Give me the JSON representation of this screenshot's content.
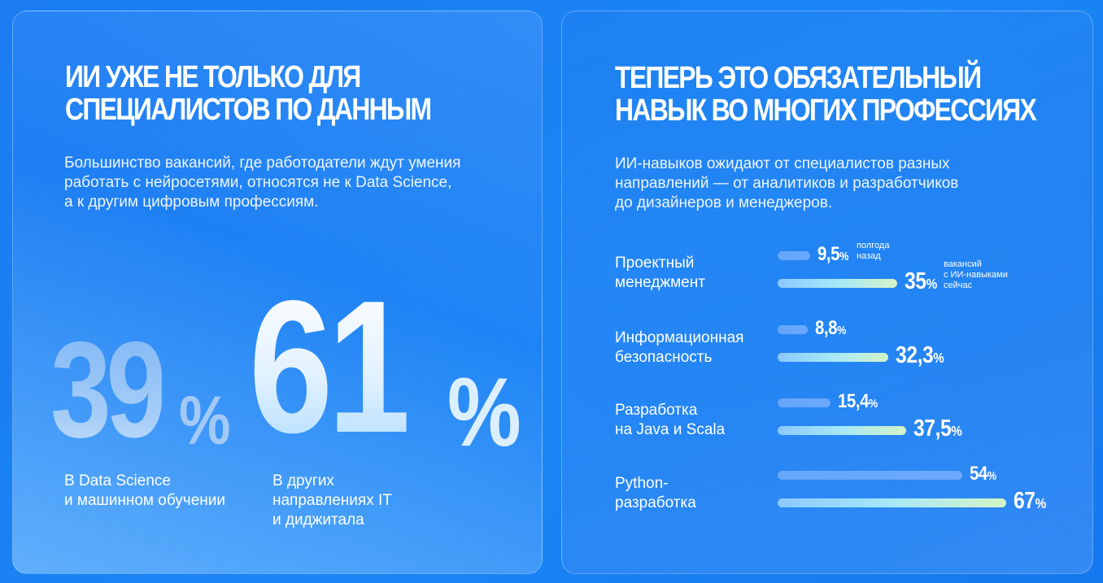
{
  "left": {
    "title_line1": "ИИ УЖЕ НЕ ТОЛЬКО ДЛЯ",
    "title_line2": "СПЕЦИАЛИСТОВ ПО ДАННЫМ",
    "lead": [
      "Большинство вакансий, где работодатели ждут умения",
      "работать с нейросетями, относятся не к Data Science,",
      "а к другим цифровым профессиям."
    ],
    "stat1": {
      "value": "39",
      "unit": "%",
      "caption": [
        "В Data Science",
        "и машинном обучении"
      ]
    },
    "stat2": {
      "value": "61",
      "unit": "%",
      "caption": [
        "В других",
        "направлениях IT",
        "и диджитала"
      ]
    }
  },
  "right": {
    "title_line1": "ТЕПЕРЬ ЭТО ОБЯЗАТЕЛЬНЫЙ",
    "title_line2": "НАВЫК ВО МНОГИХ ПРОФЕССИЯХ",
    "lead": [
      "ИИ-навыков ожидают от специалистов разных",
      "направлений — от аналитиков и разработчиков",
      "до дизайнеров и менеджеров."
    ],
    "note_old": [
      "полгода",
      "назад"
    ],
    "note_new": [
      "вакансий",
      "с ИИ-навыками",
      "сейчас"
    ]
  },
  "chart_data": {
    "type": "bar",
    "orientation": "horizontal",
    "unit": "%",
    "categories": [
      [
        "Проектный",
        "менеджмент"
      ],
      [
        "Информационная",
        "безопасность"
      ],
      [
        "Разработка",
        "на Java и Scala"
      ],
      [
        "Python-",
        "разработка"
      ]
    ],
    "series": [
      {
        "name": "полгода назад",
        "values": [
          9.5,
          8.8,
          15.4,
          54
        ],
        "labels": [
          "9,5",
          "8,8",
          "15,4",
          "54"
        ]
      },
      {
        "name": "вакансий с ИИ-навыками сейчас",
        "values": [
          35,
          32.3,
          37.5,
          67
        ],
        "labels": [
          "35",
          "32,3",
          "37,5",
          "67"
        ]
      }
    ],
    "colors": {
      "old": "#6eaaff",
      "new_start": "#8cc8ff",
      "new_end": "#d4f4c6"
    }
  }
}
